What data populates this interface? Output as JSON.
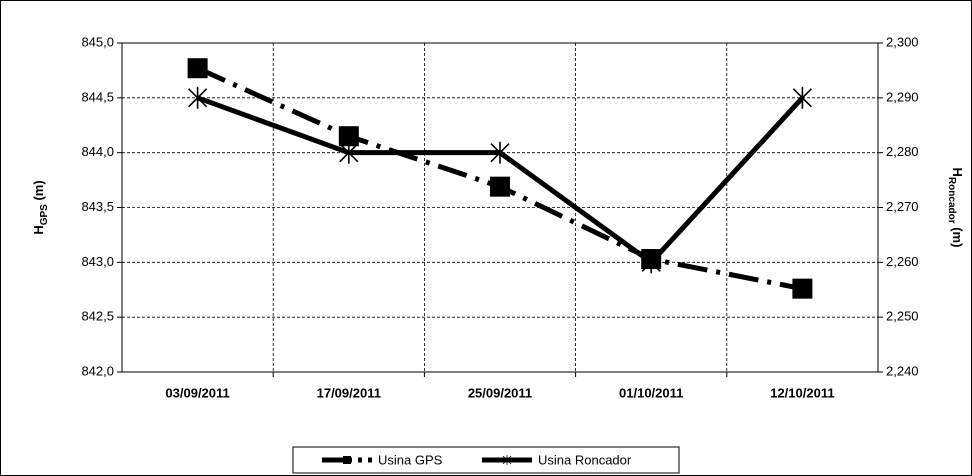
{
  "chart_data": {
    "type": "line",
    "ylabel": {
      "text": "H",
      "subscript": "GPS",
      "suffix": " (m)"
    },
    "y2label": {
      "text": "H",
      "subscript": "Roncador",
      "suffix": " (m)"
    },
    "categories": [
      "03/09/2011",
      "17/09/2011",
      "25/09/2011",
      "01/10/2011",
      "12/10/2011"
    ],
    "series": [
      {
        "name": "Usina GPS",
        "color": "#000000",
        "marker": "square",
        "line_style": "dashdot",
        "values": [
          844.77,
          844.15,
          843.69,
          843.03,
          842.76
        ]
      },
      {
        "name": "Usina Roncador",
        "color": "#000000",
        "marker": "star",
        "line_style": "solid",
        "axis": "y2",
        "values": [
          2.29,
          2.28,
          2.28,
          2.26,
          2.29
        ]
      }
    ],
    "ylim": [
      842,
      845
    ],
    "yticks": [
      {
        "value": 842,
        "label": "842,0"
      },
      {
        "value": 842.5,
        "label": "842,5"
      },
      {
        "value": 843,
        "label": "843,0"
      },
      {
        "value": 843.5,
        "label": "843,5"
      },
      {
        "value": 844,
        "label": "844,0"
      },
      {
        "value": 844.5,
        "label": "844,5"
      },
      {
        "value": 845,
        "label": "845,0"
      }
    ],
    "y2lim": [
      2.24,
      2.3
    ],
    "y2ticks": [
      {
        "value": 2.24,
        "label": "2,240"
      },
      {
        "value": 2.25,
        "label": "2,250"
      },
      {
        "value": 2.26,
        "label": "2,260"
      },
      {
        "value": 2.27,
        "label": "2,270"
      },
      {
        "value": 2.28,
        "label": "2,280"
      },
      {
        "value": 2.29,
        "label": "2,290"
      },
      {
        "value": 2.3,
        "label": "2,300"
      }
    ],
    "grid": true,
    "legend": "bottom"
  }
}
